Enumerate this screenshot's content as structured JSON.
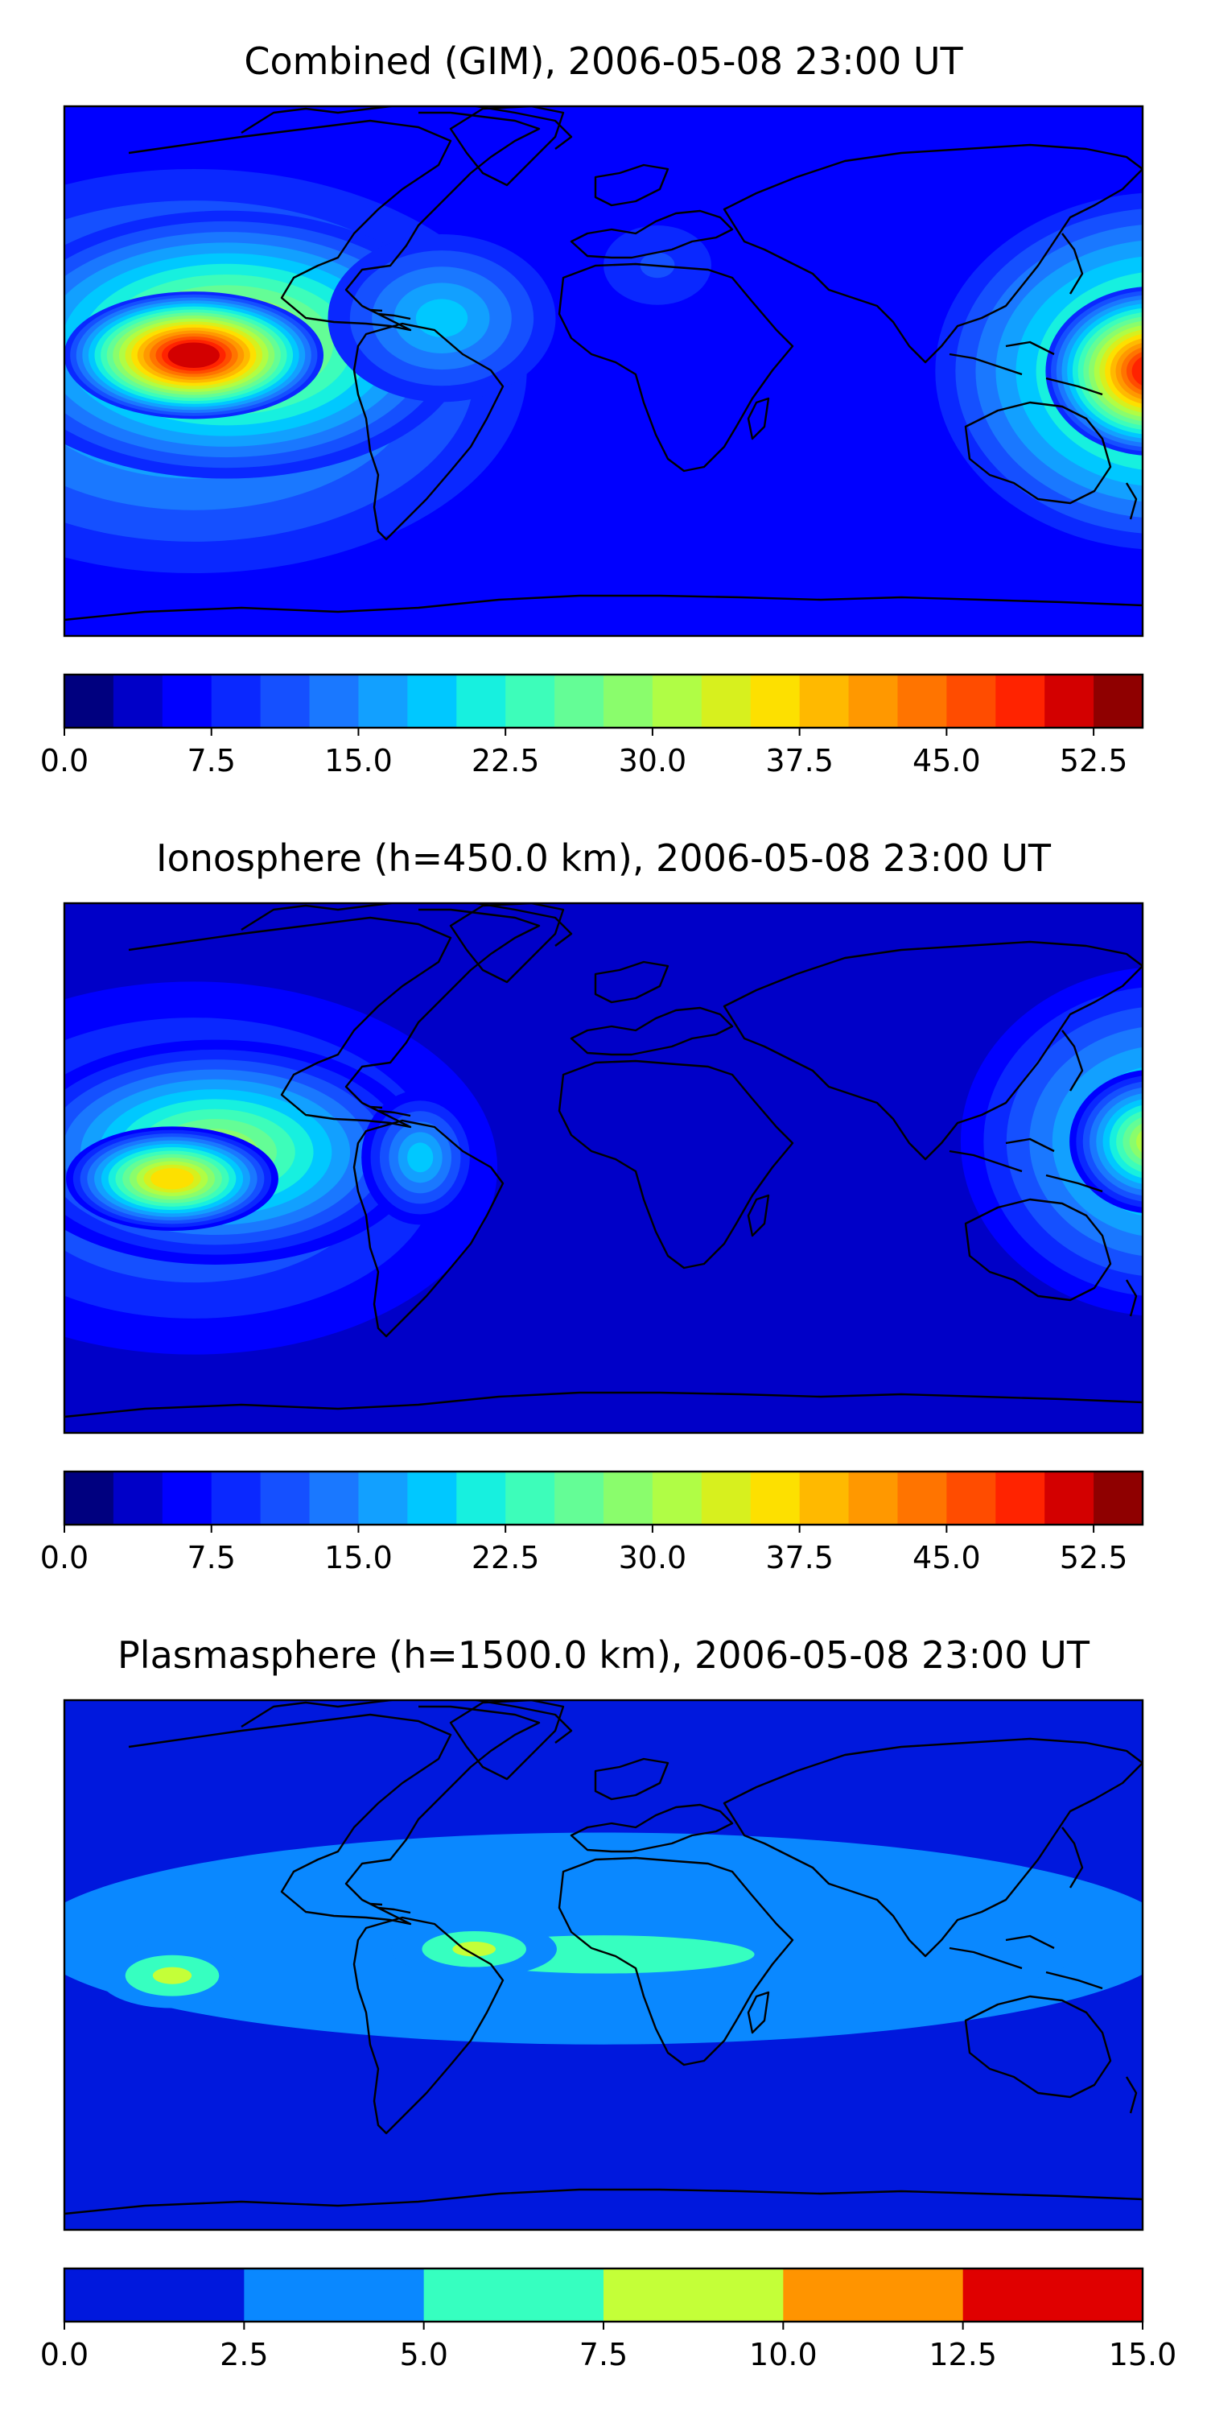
{
  "figure": {
    "panels": [
      {
        "title": "Combined (GIM), 2006-05-08 23:00 UT"
      },
      {
        "title": "Ionosphere  (h=450.0 km), 2006-05-08 23:00 UT"
      },
      {
        "title": "Plasmasphere (h=1500.0 km), 2006-05-08 23:00 UT"
      }
    ]
  },
  "chart_data": [
    {
      "type": "heatmap",
      "title": "Combined (GIM), 2006-05-08 23:00 UT",
      "colorbar": {
        "ticks": [
          "0.0",
          "7.5",
          "15.0",
          "22.5",
          "30.0",
          "37.5",
          "45.0",
          "52.5"
        ],
        "levels_min": 0,
        "levels_step": 2.5,
        "levels_count": 22,
        "colors": [
          "#00007f",
          "#0000c8",
          "#0000ff",
          "#0a28ff",
          "#1550ff",
          "#1a78ff",
          "#12a0ff",
          "#00c8ff",
          "#17f0df",
          "#3dfdba",
          "#64fd96",
          "#8afd6c",
          "#b0fd45",
          "#d7f01e",
          "#fde000",
          "#ffb900",
          "#ff9800",
          "#ff7400",
          "#ff4c00",
          "#ff2300",
          "#d30000",
          "#8f0000"
        ]
      },
      "field": {
        "value_at_max": 50.5,
        "background": 7.0
      }
    },
    {
      "type": "heatmap",
      "title": "Ionosphere  (h=450.0 km), 2006-05-08 23:00 UT",
      "colorbar": {
        "ticks": [
          "0.0",
          "7.5",
          "15.0",
          "22.5",
          "30.0",
          "37.5",
          "45.0",
          "52.5"
        ],
        "levels_min": 0,
        "levels_step": 2.5,
        "levels_count": 22,
        "colors": [
          "#00007f",
          "#0000c8",
          "#0000ff",
          "#0a28ff",
          "#1550ff",
          "#1a78ff",
          "#12a0ff",
          "#00c8ff",
          "#17f0df",
          "#3dfdba",
          "#64fd96",
          "#8afd6c",
          "#b0fd45",
          "#d7f01e",
          "#fde000",
          "#ffb900",
          "#ff9800",
          "#ff7400",
          "#ff4c00",
          "#ff2300",
          "#d30000",
          "#8f0000"
        ]
      },
      "field": {
        "value_at_max": 36.0,
        "background": 3.0
      }
    },
    {
      "type": "heatmap",
      "title": "Plasmasphere (h=1500.0 km), 2006-05-08 23:00 UT",
      "colorbar": {
        "ticks": [
          "0.0",
          "2.5",
          "5.0",
          "7.5",
          "10.0",
          "12.5",
          "15.0"
        ],
        "levels_min": 0,
        "levels_step": 2.5,
        "levels_count": 6,
        "colors": [
          "#0018dd",
          "#0a88ff",
          "#36ffc0",
          "#c4ff38",
          "#ff9400",
          "#e00000"
        ]
      },
      "field": {
        "value_at_max": 9.0,
        "background": 1.5
      }
    }
  ]
}
